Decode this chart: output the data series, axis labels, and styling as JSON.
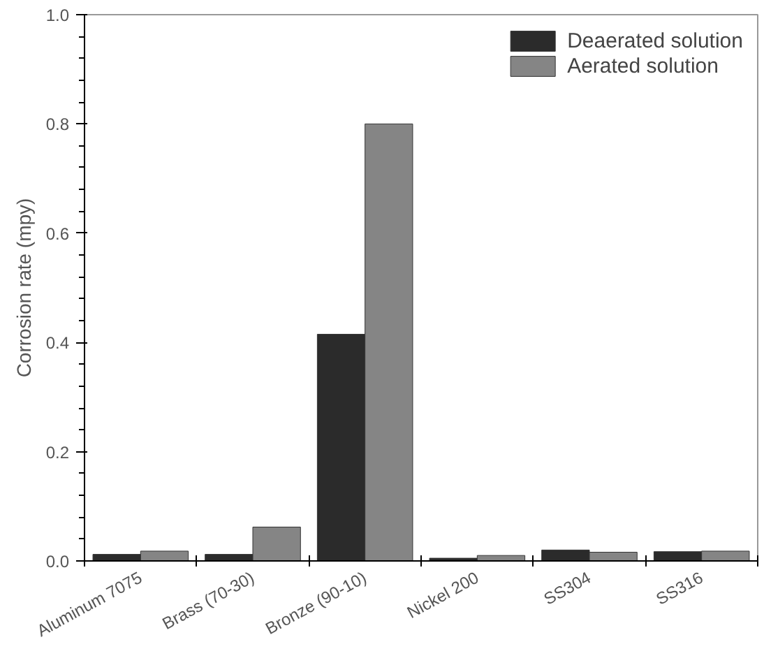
{
  "chart_data": {
    "type": "bar",
    "ylabel": "Corrosion rate (mpy)",
    "categories": [
      "Aluminum 7075",
      "Brass (70-30)",
      "Bronze (90-10)",
      "Nickel 200",
      "SS304",
      "SS316"
    ],
    "series": [
      {
        "name": "Deaerated solution",
        "color": "#2b2b2b",
        "values": [
          0.012,
          0.012,
          0.415,
          0.005,
          0.02,
          0.017
        ]
      },
      {
        "name": "Aerated solution",
        "color": "#858585",
        "values": [
          0.018,
          0.062,
          0.8,
          0.01,
          0.016,
          0.018
        ]
      }
    ],
    "ylim": [
      0,
      1.0
    ],
    "yticks": [
      {
        "value": 0,
        "label": "0.0"
      },
      0.2,
      0.4,
      0.6,
      0.8,
      {
        "value": 1.0,
        "label": "1.0"
      }
    ],
    "legend": "top right",
    "grid": false
  }
}
